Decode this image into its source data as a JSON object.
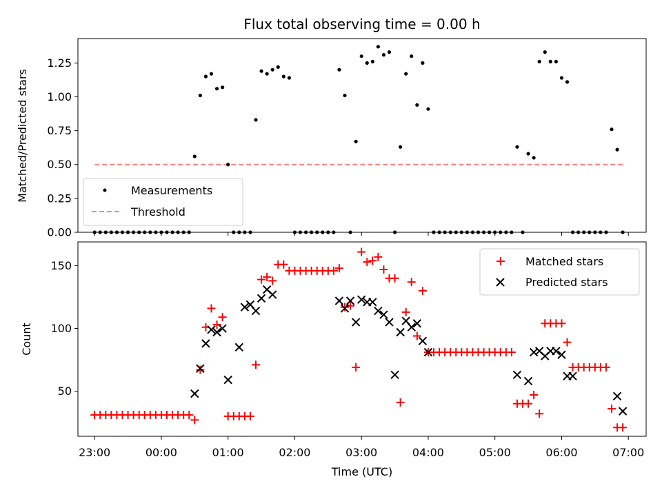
{
  "chart_data": [
    {
      "type": "scatter",
      "panel": "top",
      "title": "Flux total observing time = 0.00 h",
      "xlabel": "",
      "ylabel": "Matched/Predicted stars",
      "ylim": [
        0,
        1.43
      ],
      "yticks": [
        "0.00",
        "0.25",
        "0.50",
        "0.75",
        "1.00",
        "1.25"
      ],
      "legend": {
        "placement": "bottom-left",
        "entries": [
          "Measurements",
          "Threshold"
        ]
      },
      "colors": {
        "measurements": "#000000",
        "threshold": "#ff8080"
      },
      "threshold": {
        "y": 0.5,
        "x_start_min": 0,
        "x_end_min": 477
      },
      "series": [
        {
          "name": "Measurements",
          "x_minutes_from_2300": [
            0,
            5,
            10,
            15,
            20,
            25,
            30,
            35,
            40,
            45,
            50,
            55,
            60,
            65,
            70,
            75,
            80,
            85,
            90,
            95,
            100,
            105,
            110,
            115,
            120,
            125,
            130,
            135,
            140,
            145,
            150,
            155,
            160,
            165,
            170,
            175,
            180,
            185,
            190,
            195,
            200,
            205,
            210,
            215,
            220,
            225,
            230,
            235,
            240,
            245,
            250,
            255,
            260,
            265,
            270,
            275,
            280,
            285,
            290,
            295,
            300,
            305,
            310,
            315,
            320,
            325,
            330,
            335,
            340,
            345,
            350,
            355,
            360,
            365,
            370,
            375,
            380,
            385,
            390,
            395,
            400,
            405,
            410,
            415,
            420,
            425,
            430,
            435,
            440,
            445,
            450,
            455,
            460,
            465,
            470,
            475
          ],
          "y": [
            0,
            0,
            0,
            0,
            0,
            0,
            0,
            0,
            0,
            0,
            0,
            0,
            0,
            0,
            0,
            0,
            0,
            0,
            0.56,
            1.01,
            1.15,
            1.17,
            1.06,
            1.07,
            0.5,
            0,
            0,
            0,
            0,
            0.83,
            1.19,
            1.17,
            1.2,
            1.22,
            1.15,
            1.14,
            0,
            0,
            0,
            0,
            0,
            0,
            0,
            0,
            1.2,
            1.01,
            0,
            0.67,
            1.3,
            1.25,
            1.26,
            1.37,
            1.31,
            1.33,
            0,
            0.63,
            1.17,
            1.3,
            0.94,
            1.25,
            0.91,
            0,
            0,
            0,
            0,
            0,
            0,
            0,
            0,
            0,
            0,
            0,
            0,
            0,
            0,
            0,
            0.63,
            0,
            0.58,
            0.55,
            1.26,
            1.33,
            1.26,
            1.26,
            1.14,
            1.11,
            0,
            0,
            0,
            0,
            0,
            0,
            0,
            0.76,
            0.61,
            0
          ]
        }
      ]
    },
    {
      "type": "scatter",
      "panel": "bottom",
      "xlabel": "Time (UTC)",
      "ylabel": "Count",
      "ylim": [
        14,
        169
      ],
      "yticks": [
        "50",
        "100",
        "150"
      ],
      "xticks": [
        "23:00",
        "00:00",
        "01:00",
        "02:00",
        "03:00",
        "04:00",
        "05:00",
        "06:00",
        "07:00"
      ],
      "legend": {
        "placement": "top-right",
        "entries": [
          "Matched stars",
          "Predicted stars"
        ]
      },
      "colors": {
        "matched": "#ff0000",
        "predicted": "#000000"
      },
      "series": [
        {
          "name": "Matched stars",
          "x_minutes_from_2300": [
            0,
            5,
            10,
            15,
            20,
            25,
            30,
            35,
            40,
            45,
            50,
            55,
            60,
            65,
            70,
            75,
            80,
            85,
            90,
            95,
            100,
            105,
            110,
            115,
            120,
            125,
            130,
            135,
            140,
            145,
            150,
            155,
            160,
            165,
            170,
            175,
            180,
            185,
            190,
            195,
            200,
            205,
            210,
            215,
            220,
            225,
            230,
            235,
            240,
            245,
            250,
            255,
            260,
            265,
            270,
            275,
            280,
            285,
            290,
            295,
            300,
            305,
            310,
            315,
            320,
            325,
            330,
            335,
            340,
            345,
            350,
            355,
            360,
            365,
            370,
            375,
            380,
            385,
            390,
            395,
            400,
            405,
            410,
            415,
            420,
            425,
            430,
            435,
            440,
            445,
            450,
            455,
            460,
            465,
            470,
            475
          ],
          "y": [
            31,
            31,
            31,
            31,
            31,
            31,
            31,
            31,
            31,
            31,
            31,
            31,
            31,
            31,
            31,
            31,
            31,
            31,
            27,
            67,
            101,
            116,
            103,
            109,
            30,
            30,
            30,
            30,
            30,
            71,
            139,
            141,
            138,
            151,
            151,
            146,
            146,
            146,
            146,
            146,
            146,
            146,
            146,
            146,
            148,
            117,
            118,
            69,
            161,
            153,
            154,
            157,
            147,
            140,
            140,
            41,
            113,
            137,
            94,
            130,
            81,
            81,
            81,
            81,
            81,
            81,
            81,
            81,
            81,
            81,
            81,
            81,
            81,
            81,
            81,
            81,
            40,
            40,
            40,
            47,
            32,
            104,
            104,
            104,
            104,
            89,
            69,
            69,
            69,
            69,
            69,
            69,
            69,
            36,
            21,
            21
          ]
        },
        {
          "name": "Predicted stars",
          "x_minutes_from_2300": [
            90,
            95,
            100,
            105,
            110,
            115,
            120,
            130,
            135,
            140,
            145,
            150,
            155,
            160,
            220,
            225,
            230,
            235,
            240,
            245,
            250,
            255,
            260,
            265,
            270,
            275,
            280,
            285,
            290,
            295,
            300,
            380,
            390,
            395,
            400,
            405,
            410,
            415,
            420,
            425,
            430,
            470,
            475
          ],
          "y": [
            48,
            68,
            88,
            99,
            97,
            100,
            59,
            85,
            117,
            119,
            114,
            124,
            131,
            127,
            122,
            116,
            122,
            105,
            123,
            121,
            121,
            114,
            111,
            105,
            63,
            97,
            106,
            101,
            104,
            90,
            81,
            63,
            58,
            81,
            82,
            78,
            82,
            82,
            79,
            62,
            62,
            46,
            34
          ]
        }
      ]
    }
  ]
}
